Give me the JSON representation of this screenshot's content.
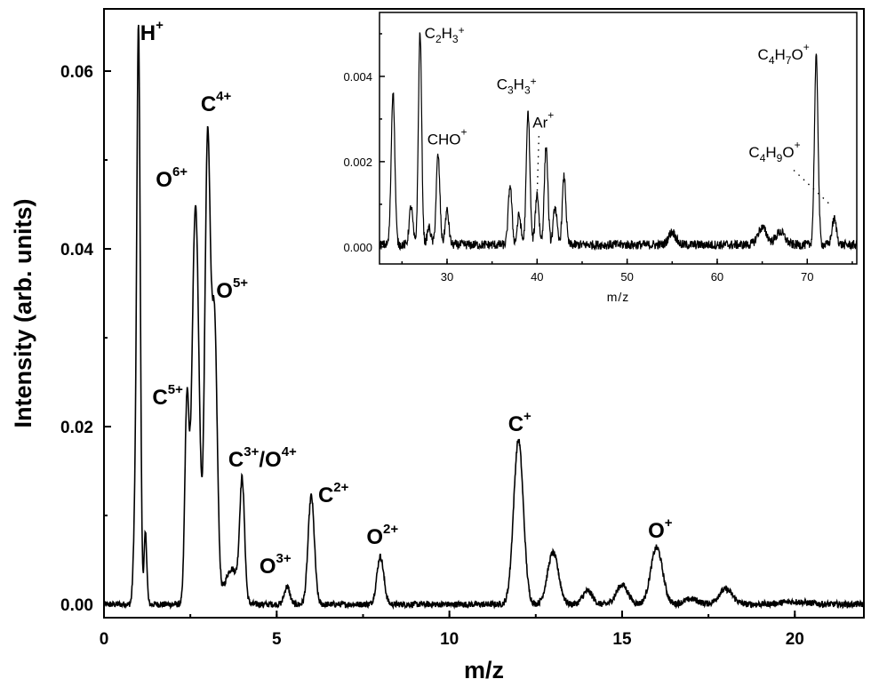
{
  "chart_data": [
    {
      "type": "line",
      "xlabel": "m/z",
      "ylabel": "Intensity (arb. units)",
      "xlim": [
        0,
        22
      ],
      "ylim": [
        -0.0015,
        0.067
      ],
      "x_ticks": [
        0,
        5,
        10,
        15,
        20
      ],
      "x_tick_labels": [
        "0",
        "5",
        "10",
        "15",
        "20"
      ],
      "y_ticks": [
        0.0,
        0.02,
        0.04,
        0.06
      ],
      "y_tick_labels": [
        "0.00",
        "0.02",
        "0.04",
        "0.06"
      ],
      "grid": false,
      "series": [
        {
          "peaks": [
            {
              "x": 0.9,
              "y": 0.0085,
              "w": 0.05
            },
            {
              "x": 1.0,
              "y": 0.064,
              "w": 0.05
            },
            {
              "x": 1.2,
              "y": 0.008,
              "w": 0.04
            },
            {
              "x": 2.4,
              "y": 0.022,
              "w": 0.06
            },
            {
              "x": 2.65,
              "y": 0.045,
              "w": 0.1
            },
            {
              "x": 3.0,
              "y": 0.052,
              "w": 0.08
            },
            {
              "x": 3.2,
              "y": 0.031,
              "w": 0.08
            },
            {
              "x": 3.7,
              "y": 0.004,
              "w": 0.2
            },
            {
              "x": 4.0,
              "y": 0.013,
              "w": 0.07
            },
            {
              "x": 5.3,
              "y": 0.002,
              "w": 0.08
            },
            {
              "x": 6.0,
              "y": 0.0122,
              "w": 0.09
            },
            {
              "x": 8.0,
              "y": 0.0054,
              "w": 0.1
            },
            {
              "x": 12.0,
              "y": 0.0185,
              "w": 0.14
            },
            {
              "x": 13.0,
              "y": 0.0058,
              "w": 0.16
            },
            {
              "x": 14.0,
              "y": 0.0015,
              "w": 0.14
            },
            {
              "x": 15.0,
              "y": 0.0022,
              "w": 0.17
            },
            {
              "x": 16.0,
              "y": 0.0064,
              "w": 0.17
            },
            {
              "x": 17.0,
              "y": 0.0006,
              "w": 0.2
            },
            {
              "x": 18.0,
              "y": 0.0017,
              "w": 0.2
            },
            {
              "x": 20.0,
              "y": 0.0003,
              "w": 0.4
            }
          ]
        }
      ],
      "annotations": [
        {
          "base": "H",
          "sup": "+",
          "x": 1.05,
          "y": 0.0635
        },
        {
          "base": "C",
          "sup": "4+",
          "x": 2.8,
          "y": 0.0555
        },
        {
          "base": "O",
          "sup": "6+",
          "x": 1.5,
          "y": 0.047
        },
        {
          "base": "O",
          "sup": "5+",
          "x": 3.25,
          "y": 0.0345
        },
        {
          "base": "C",
          "sup": "5+",
          "x": 1.4,
          "y": 0.0225
        },
        {
          "base": "C",
          "sup": "3+",
          "mid": "/O",
          "sup2": "4+",
          "x": 3.6,
          "y": 0.0155
        },
        {
          "base": "O",
          "sup": "3+",
          "x": 4.5,
          "y": 0.0035
        },
        {
          "base": "C",
          "sup": "2+",
          "x": 6.2,
          "y": 0.0115
        },
        {
          "base": "O",
          "sup": "2+",
          "x": 7.6,
          "y": 0.0068
        },
        {
          "base": "C",
          "sup": "+",
          "x": 11.7,
          "y": 0.0195
        },
        {
          "base": "O",
          "sup": "+",
          "x": 15.75,
          "y": 0.0075
        }
      ]
    },
    {
      "type": "line",
      "xlabel": "m/z",
      "ylabel": "",
      "xlim": [
        22.5,
        75.5
      ],
      "ylim": [
        -0.0004,
        0.0055
      ],
      "x_ticks": [
        30,
        40,
        50,
        60,
        70
      ],
      "x_tick_labels": [
        "30",
        "40",
        "50",
        "60",
        "70"
      ],
      "y_ticks": [
        0.0,
        0.002,
        0.004
      ],
      "y_tick_labels": [
        "0.000",
        "0.002",
        "0.004"
      ],
      "grid": false,
      "series": [
        {
          "peaks": [
            {
              "x": 24.0,
              "y": 0.0036,
              "w": 0.2
            },
            {
              "x": 26.0,
              "y": 0.0009,
              "w": 0.2
            },
            {
              "x": 27.0,
              "y": 0.005,
              "w": 0.18
            },
            {
              "x": 28.0,
              "y": 0.0004,
              "w": 0.2
            },
            {
              "x": 29.0,
              "y": 0.0021,
              "w": 0.2
            },
            {
              "x": 30.0,
              "y": 0.0008,
              "w": 0.2
            },
            {
              "x": 37.0,
              "y": 0.0014,
              "w": 0.2
            },
            {
              "x": 38.0,
              "y": 0.0007,
              "w": 0.2
            },
            {
              "x": 39.0,
              "y": 0.0031,
              "w": 0.2
            },
            {
              "x": 40.0,
              "y": 0.0012,
              "w": 0.2
            },
            {
              "x": 41.0,
              "y": 0.0023,
              "w": 0.2
            },
            {
              "x": 42.0,
              "y": 0.0009,
              "w": 0.2
            },
            {
              "x": 43.0,
              "y": 0.0016,
              "w": 0.2
            },
            {
              "x": 55.0,
              "y": 0.0003,
              "w": 0.4
            },
            {
              "x": 65.0,
              "y": 0.0004,
              "w": 0.5
            },
            {
              "x": 67.0,
              "y": 0.0003,
              "w": 0.5
            },
            {
              "x": 71.0,
              "y": 0.0044,
              "w": 0.2
            },
            {
              "x": 73.0,
              "y": 0.0006,
              "w": 0.25
            }
          ]
        }
      ],
      "annotations": [
        {
          "base": "C",
          "sub1": "2",
          "mid": "H",
          "sub2": "3",
          "sup": "+",
          "x": 27.5,
          "y": 0.0049
        },
        {
          "base": "C",
          "sub1": "3",
          "mid": "H",
          "sub2": "3",
          "sup": "+",
          "x": 35.5,
          "y": 0.0037
        },
        {
          "base": "CHO",
          "sup": "+",
          "x": 27.8,
          "y": 0.0024
        },
        {
          "base": "Ar",
          "sup": "+",
          "x": 39.5,
          "y": 0.0028
        },
        {
          "base": "C",
          "sub1": "4",
          "mid": "H",
          "sub2": "7",
          "mid2": "O",
          "sup": "+",
          "x": 64.5,
          "y": 0.0044
        },
        {
          "base": "C",
          "sub1": "4",
          "mid": "H",
          "sub2": "9",
          "mid2": "O",
          "sup": "+",
          "x": 63.5,
          "y": 0.0021
        }
      ]
    }
  ]
}
